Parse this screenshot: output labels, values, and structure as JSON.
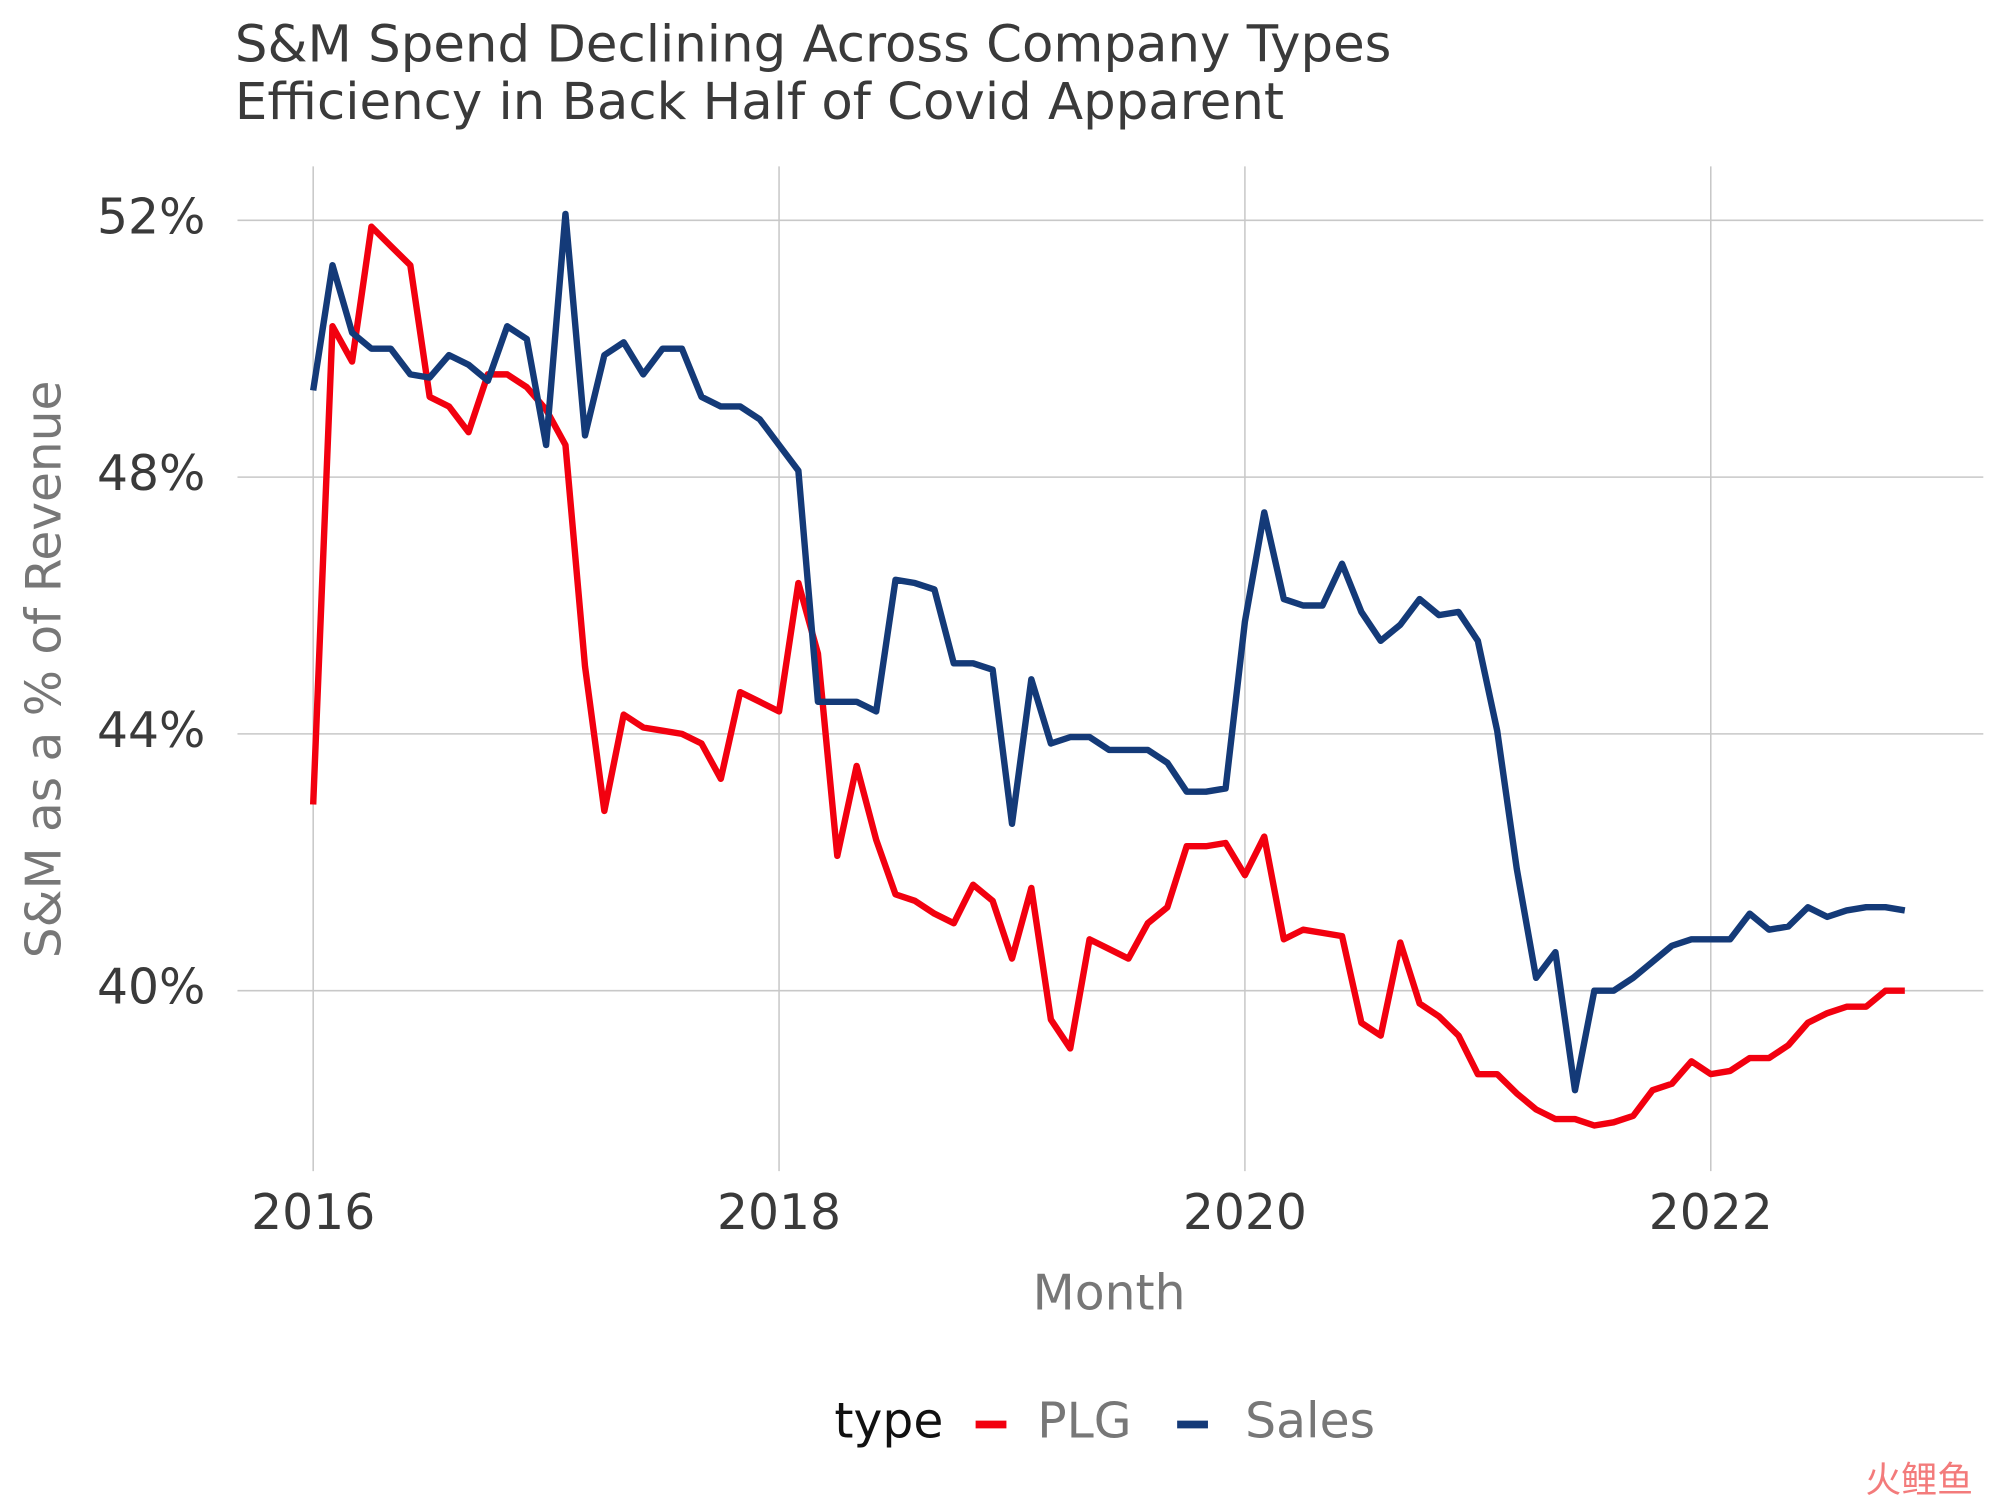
{
  "chart_data": {
    "type": "line",
    "title": "S&M Spend Declining Across Company Types",
    "subtitle": "Efficiency in Back Half of Covid Apparent",
    "x_label": "Month",
    "y_label": "S&M as a % of Revenue",
    "legend_title": "type",
    "legend": "bottom",
    "grid": true,
    "watermark": "火鲤鱼",
    "xlim": [
      2015.675,
      2023.17
    ],
    "xticks": [
      2016,
      2018,
      2020,
      2022
    ],
    "ylim": [
      37.19,
      52.84
    ],
    "yticks": [
      {
        "value": 40,
        "label": "40%"
      },
      {
        "value": 44,
        "label": "44%"
      },
      {
        "value": 48,
        "label": "48%"
      },
      {
        "value": 52,
        "label": "52%"
      }
    ],
    "x": [
      2016,
      2016.083,
      2016.167,
      2016.25,
      2016.333,
      2016.417,
      2016.5,
      2016.583,
      2016.667,
      2016.75,
      2016.833,
      2016.917,
      2017,
      2017.083,
      2017.167,
      2017.25,
      2017.333,
      2017.417,
      2017.5,
      2017.583,
      2017.667,
      2017.75,
      2017.833,
      2017.917,
      2018,
      2018.083,
      2018.167,
      2018.25,
      2018.333,
      2018.417,
      2018.5,
      2018.583,
      2018.667,
      2018.75,
      2018.833,
      2018.917,
      2019,
      2019.083,
      2019.167,
      2019.25,
      2019.333,
      2019.417,
      2019.5,
      2019.583,
      2019.667,
      2019.75,
      2019.833,
      2019.917,
      2020,
      2020.083,
      2020.167,
      2020.25,
      2020.333,
      2020.417,
      2020.5,
      2020.583,
      2020.667,
      2020.75,
      2020.833,
      2020.917,
      2021,
      2021.083,
      2021.167,
      2021.25,
      2021.333,
      2021.417,
      2021.5,
      2021.583,
      2021.667,
      2021.75,
      2021.833,
      2021.917,
      2022,
      2022.083,
      2022.167,
      2022.25,
      2022.333,
      2022.417,
      2022.5,
      2022.583,
      2022.667,
      2022.75,
      2022.833
    ],
    "series": [
      {
        "name": "PLG",
        "color": "#f2000f",
        "values": [
          42.9,
          50.35,
          49.8,
          51.9,
          51.6,
          51.3,
          49.25,
          49.1,
          48.7,
          49.6,
          49.6,
          49.4,
          49.05,
          48.5,
          45.05,
          42.8,
          44.3,
          44.1,
          44.05,
          44.0,
          43.85,
          43.3,
          44.65,
          44.5,
          44.35,
          46.35,
          45.25,
          42.1,
          43.5,
          42.35,
          41.5,
          41.4,
          41.2,
          41.05,
          41.65,
          41.4,
          40.5,
          41.6,
          39.55,
          39.1,
          40.8,
          40.65,
          40.5,
          41.05,
          41.3,
          42.25,
          42.25,
          42.3,
          41.8,
          42.4,
          40.8,
          40.95,
          40.9,
          40.85,
          39.5,
          39.3,
          40.75,
          39.8,
          39.6,
          39.3,
          38.7,
          38.7,
          38.4,
          38.15,
          38.0,
          38.0,
          37.9,
          37.95,
          38.05,
          38.45,
          38.55,
          38.9,
          38.7,
          38.75,
          38.95,
          38.95,
          39.15,
          39.5,
          39.65,
          39.75,
          39.75,
          40.0,
          40.0
        ]
      },
      {
        "name": "Sales",
        "color": "#143a78",
        "values": [
          49.35,
          51.3,
          50.25,
          50.0,
          50.0,
          49.6,
          49.55,
          49.9,
          49.75,
          49.5,
          50.35,
          50.15,
          48.5,
          52.1,
          48.65,
          49.9,
          50.1,
          49.6,
          50.0,
          50.0,
          49.25,
          49.1,
          49.1,
          48.9,
          48.5,
          48.1,
          44.5,
          44.5,
          44.5,
          44.35,
          46.4,
          46.35,
          46.25,
          45.1,
          45.1,
          45.0,
          42.6,
          44.85,
          43.85,
          43.95,
          43.95,
          43.75,
          43.75,
          43.75,
          43.55,
          43.1,
          43.1,
          43.15,
          45.75,
          47.45,
          46.1,
          46.0,
          46.0,
          46.65,
          45.9,
          45.45,
          45.7,
          46.1,
          45.85,
          45.9,
          45.45,
          44.05,
          41.9,
          40.2,
          40.6,
          38.45,
          40.0,
          40.0,
          40.2,
          40.45,
          40.7,
          40.8,
          40.8,
          40.8,
          41.2,
          40.95,
          41.0,
          41.3,
          41.15,
          41.25,
          41.3,
          41.3,
          41.25
        ]
      }
    ]
  }
}
